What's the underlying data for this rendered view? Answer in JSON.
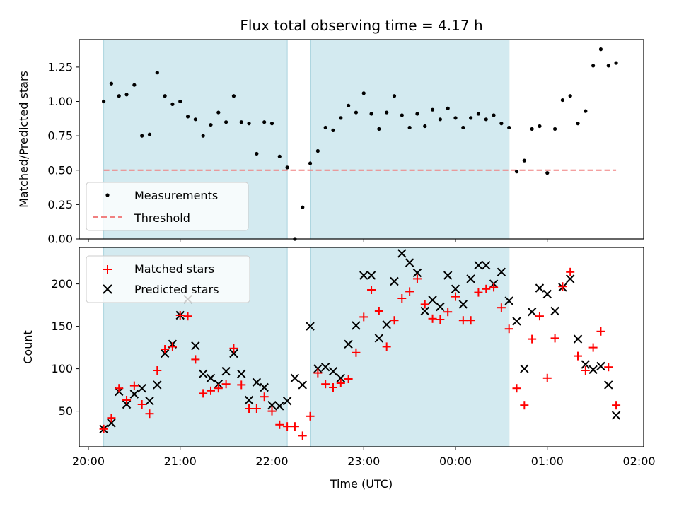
{
  "chart_data": {
    "title": "Flux total observing time = 4.17 h",
    "xlabel": "Time (UTC)",
    "x_tick_labels": [
      "20:00",
      "21:00",
      "22:00",
      "23:00",
      "00:00",
      "01:00",
      "02:00"
    ],
    "x_tick_minutes": [
      0,
      60,
      120,
      180,
      240,
      300,
      360
    ],
    "xlim_minutes_since_2000": [
      -6,
      363
    ],
    "shaded_intervals_minutes": [
      [
        10,
        130
      ],
      [
        145,
        275
      ]
    ],
    "colors": {
      "shade": "#d3eaf0",
      "shade_edge": "#aad4de",
      "matched": "#ff0000",
      "predicted": "#000000",
      "threshold": "#f08080",
      "measurement": "#000000"
    },
    "panels": [
      {
        "type": "scatter",
        "ylabel": "Matched/Predicted stars",
        "ylim": [
          0,
          1.45
        ],
        "y_tick_values": [
          0.0,
          0.25,
          0.5,
          0.75,
          1.0,
          1.25
        ],
        "y_tick_labels": [
          "0.00",
          "0.25",
          "0.50",
          "0.75",
          "1.00",
          "1.25"
        ],
        "legend_position": "lower-left",
        "legend": [
          "Measurements",
          "Threshold"
        ],
        "threshold": {
          "name": "Threshold",
          "y": 0.5,
          "x_range_minutes": [
            10,
            345
          ]
        },
        "series": [
          {
            "name": "Measurements",
            "x_minutes": [
              10,
              15,
              20,
              25,
              30,
              35,
              40,
              45,
              50,
              55,
              60,
              65,
              70,
              75,
              80,
              85,
              90,
              95,
              100,
              105,
              110,
              115,
              120,
              125,
              130,
              135,
              140,
              145,
              150,
              155,
              160,
              165,
              170,
              175,
              180,
              185,
              190,
              195,
              200,
              205,
              210,
              215,
              220,
              225,
              230,
              235,
              240,
              245,
              250,
              255,
              260,
              265,
              270,
              275,
              280,
              285,
              290,
              295,
              300,
              305,
              310,
              315,
              320,
              325,
              330,
              335,
              340,
              345
            ],
            "y": [
              1.0,
              1.13,
              1.04,
              1.05,
              1.12,
              0.75,
              0.76,
              1.21,
              1.04,
              0.98,
              1.0,
              0.89,
              0.87,
              0.75,
              0.83,
              0.92,
              0.85,
              1.04,
              0.85,
              0.84,
              0.62,
              0.85,
              0.84,
              0.6,
              0.52,
              0.0,
              0.23,
              0.55,
              0.64,
              0.81,
              0.79,
              0.88,
              0.97,
              0.92,
              1.06,
              0.91,
              0.8,
              0.92,
              1.04,
              0.9,
              0.81,
              0.91,
              0.82,
              0.94,
              0.87,
              0.95,
              0.88,
              0.81,
              0.88,
              0.91,
              0.87,
              0.9,
              0.84,
              0.81,
              0.49,
              0.57,
              0.8,
              0.82,
              0.48,
              0.8,
              1.01,
              1.04,
              0.84,
              0.93,
              1.26,
              1.38,
              1.26,
              1.28
            ]
          }
        ]
      },
      {
        "type": "scatter",
        "ylabel": "Count",
        "ylim": [
          8,
          243
        ],
        "y_tick_values": [
          50,
          100,
          150,
          200
        ],
        "y_tick_labels": [
          "50",
          "100",
          "150",
          "200"
        ],
        "legend_position": "top-left",
        "legend": [
          "Matched stars",
          "Predicted stars"
        ],
        "series": [
          {
            "name": "Matched stars",
            "x_minutes": [
              10,
              15,
              20,
              25,
              30,
              35,
              40,
              45,
              50,
              55,
              60,
              65,
              70,
              75,
              80,
              85,
              90,
              95,
              100,
              105,
              110,
              115,
              120,
              125,
              130,
              135,
              140,
              145,
              150,
              155,
              160,
              165,
              170,
              175,
              180,
              185,
              190,
              195,
              200,
              205,
              210,
              215,
              220,
              225,
              230,
              235,
              240,
              245,
              250,
              255,
              260,
              265,
              270,
              275,
              280,
              285,
              290,
              295,
              300,
              305,
              310,
              315,
              320,
              325,
              330,
              335,
              340,
              345
            ],
            "y": [
              29,
              42,
              77,
              63,
              80,
              58,
              47,
              98,
              123,
              126,
              163,
              162,
              111,
              71,
              74,
              77,
              82,
              124,
              81,
              53,
              53,
              67,
              50,
              34,
              32,
              32,
              21,
              44,
              95,
              82,
              78,
              83,
              88,
              119,
              161,
              193,
              168,
              126,
              157,
              183,
              191,
              206,
              176,
              159,
              158,
              167,
              185,
              157,
              157,
              190,
              194,
              196,
              172,
              147,
              77,
              57,
              135,
              162,
              89,
              136,
              197,
              214,
              115,
              98,
              125,
              144,
              102,
              57
            ]
          },
          {
            "name": "Predicted stars",
            "x_minutes": [
              10,
              15,
              20,
              25,
              30,
              35,
              40,
              45,
              50,
              55,
              60,
              65,
              70,
              75,
              80,
              85,
              90,
              95,
              100,
              105,
              110,
              115,
              120,
              125,
              130,
              135,
              140,
              145,
              150,
              155,
              160,
              165,
              170,
              175,
              180,
              185,
              190,
              195,
              200,
              205,
              210,
              215,
              220,
              225,
              230,
              235,
              240,
              245,
              250,
              255,
              260,
              265,
              270,
              275,
              280,
              285,
              290,
              295,
              300,
              305,
              310,
              315,
              320,
              325,
              330,
              335,
              340,
              345
            ],
            "y": [
              29,
              36,
              73,
              58,
              70,
              77,
              62,
              81,
              118,
              129,
              163,
              182,
              127,
              94,
              89,
              82,
              97,
              118,
              94,
              63,
              84,
              78,
              57,
              56,
              62,
              89,
              81,
              150,
              100,
              102,
              97,
              89,
              129,
              151,
              210,
              210,
              136,
              152,
              203,
              236,
              225,
              213,
              168,
              181,
              173,
              210,
              194,
              176,
              206,
              222,
              222,
              200,
              214,
              180,
              156,
              100,
              167,
              195,
              188,
              168,
              196,
              206,
              135,
              105,
              99,
              103,
              81,
              45
            ]
          }
        ]
      }
    ]
  }
}
